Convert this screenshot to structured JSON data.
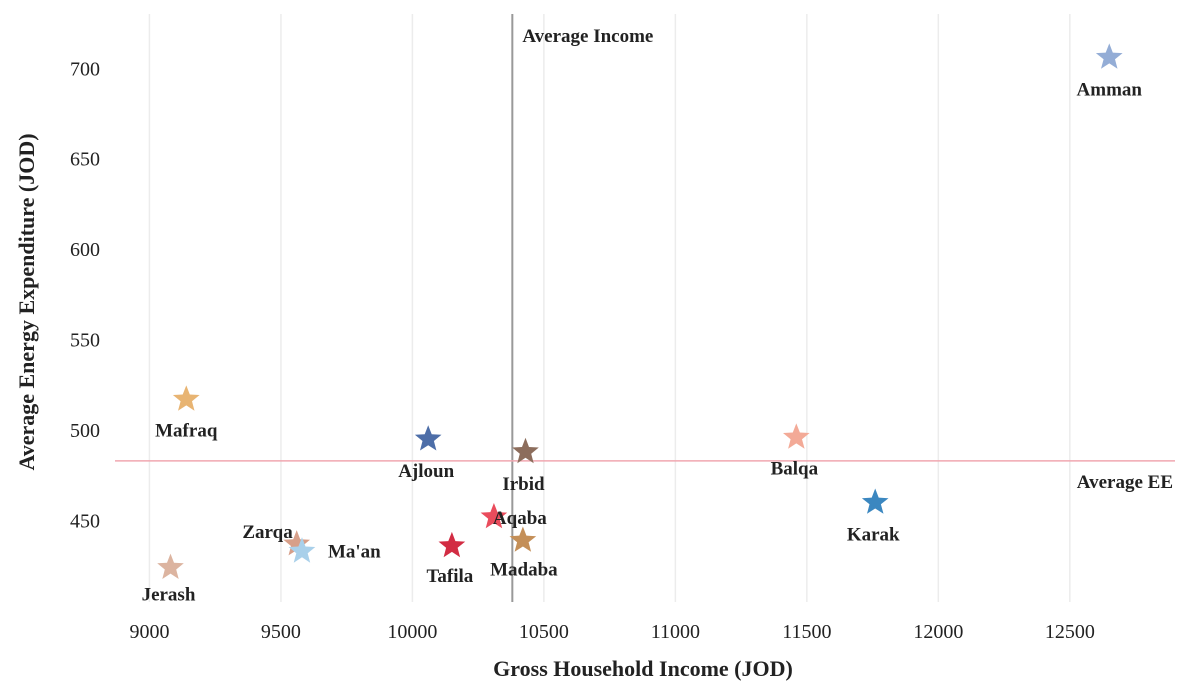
{
  "chart_data": {
    "type": "scatter",
    "title": "",
    "xlabel": "Gross Household Income (JOD)",
    "ylabel": "Average Energy Expenditure (JOD)",
    "xlim": [
      8850,
      12900
    ],
    "ylim": [
      405,
      730
    ],
    "xticks": [
      9000,
      9500,
      10000,
      10500,
      11000,
      11500,
      12000,
      12500
    ],
    "yticks": [
      450,
      500,
      550,
      600,
      650,
      700
    ],
    "grid": "vertical",
    "marker": "star",
    "points": [
      {
        "label": "Amman",
        "x": 12650,
        "y": 706,
        "color": "#94add6"
      },
      {
        "label": "Mafraq",
        "x": 9140,
        "y": 517,
        "color": "#e8b472"
      },
      {
        "label": "Ajloun",
        "x": 10060,
        "y": 495,
        "color": "#4d6ea8"
      },
      {
        "label": "Irbid",
        "x": 10430,
        "y": 488,
        "color": "#8c6d5c"
      },
      {
        "label": "Balqa",
        "x": 11460,
        "y": 496,
        "color": "#f3aa97"
      },
      {
        "label": "Karak",
        "x": 11760,
        "y": 460,
        "color": "#3b87c0"
      },
      {
        "label": "Zarqa",
        "x": 9560,
        "y": 437,
        "color": "#d79f89"
      },
      {
        "label": "Ma'an",
        "x": 9580,
        "y": 433,
        "color": "#a9d0ea"
      },
      {
        "label": "Jerash",
        "x": 9080,
        "y": 424,
        "color": "#dcb4a0"
      },
      {
        "label": "Tafila",
        "x": 10150,
        "y": 436,
        "color": "#d22c43"
      },
      {
        "label": "Aqaba",
        "x": 10310,
        "y": 452,
        "color": "#ea4c5c"
      },
      {
        "label": "Madaba",
        "x": 10420,
        "y": 439,
        "color": "#c48f58"
      }
    ],
    "reference_lines": [
      {
        "label": "Average Income",
        "axis": "x",
        "value": 10380,
        "color": "#999999"
      },
      {
        "label": "Average EE",
        "axis": "y",
        "value": 483,
        "color": "#f0a7b0"
      }
    ]
  }
}
